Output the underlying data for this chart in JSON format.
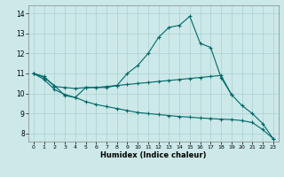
{
  "title": "",
  "xlabel": "Humidex (Indice chaleur)",
  "xlim": [
    -0.5,
    23.5
  ],
  "ylim": [
    7.6,
    14.4
  ],
  "yticks": [
    8,
    9,
    10,
    11,
    12,
    13,
    14
  ],
  "xticks": [
    0,
    1,
    2,
    3,
    4,
    5,
    6,
    7,
    8,
    9,
    10,
    11,
    12,
    13,
    14,
    15,
    16,
    17,
    18,
    19,
    20,
    21,
    22,
    23
  ],
  "background_color": "#cce8e8",
  "grid_color": "#aad0d0",
  "line_color": "#006868",
  "lines": [
    {
      "x": [
        0,
        1,
        2,
        3,
        4,
        5,
        6,
        7,
        8,
        9,
        10,
        11,
        12,
        13,
        14,
        15,
        16,
        17,
        18,
        19,
        20,
        21,
        22,
        23
      ],
      "y": [
        11.0,
        10.8,
        10.4,
        9.9,
        9.8,
        10.3,
        10.3,
        10.3,
        10.4,
        11.0,
        11.4,
        12.0,
        12.8,
        13.3,
        13.4,
        13.85,
        12.5,
        12.3,
        10.8,
        9.95,
        9.4,
        9.0,
        8.5,
        7.75
      ]
    },
    {
      "x": [
        0,
        1,
        2,
        3,
        4,
        5,
        6,
        7,
        8,
        9,
        10,
        11,
        12,
        13,
        14,
        15,
        16,
        17,
        18,
        19
      ],
      "y": [
        11.0,
        10.85,
        10.35,
        10.3,
        10.25,
        10.3,
        10.3,
        10.35,
        10.4,
        10.45,
        10.5,
        10.55,
        10.6,
        10.65,
        10.7,
        10.75,
        10.8,
        10.85,
        10.9,
        9.95
      ]
    },
    {
      "x": [
        0,
        1,
        2,
        3,
        4,
        5,
        6,
        7,
        8,
        9,
        10,
        11,
        12,
        13,
        14,
        15,
        16,
        17,
        18,
        19,
        20,
        21,
        22,
        23
      ],
      "y": [
        11.0,
        10.7,
        10.2,
        9.95,
        9.8,
        9.6,
        9.45,
        9.35,
        9.25,
        9.15,
        9.05,
        9.0,
        8.95,
        8.9,
        8.85,
        8.82,
        8.78,
        8.75,
        8.72,
        8.7,
        8.65,
        8.55,
        8.2,
        7.75
      ]
    }
  ]
}
